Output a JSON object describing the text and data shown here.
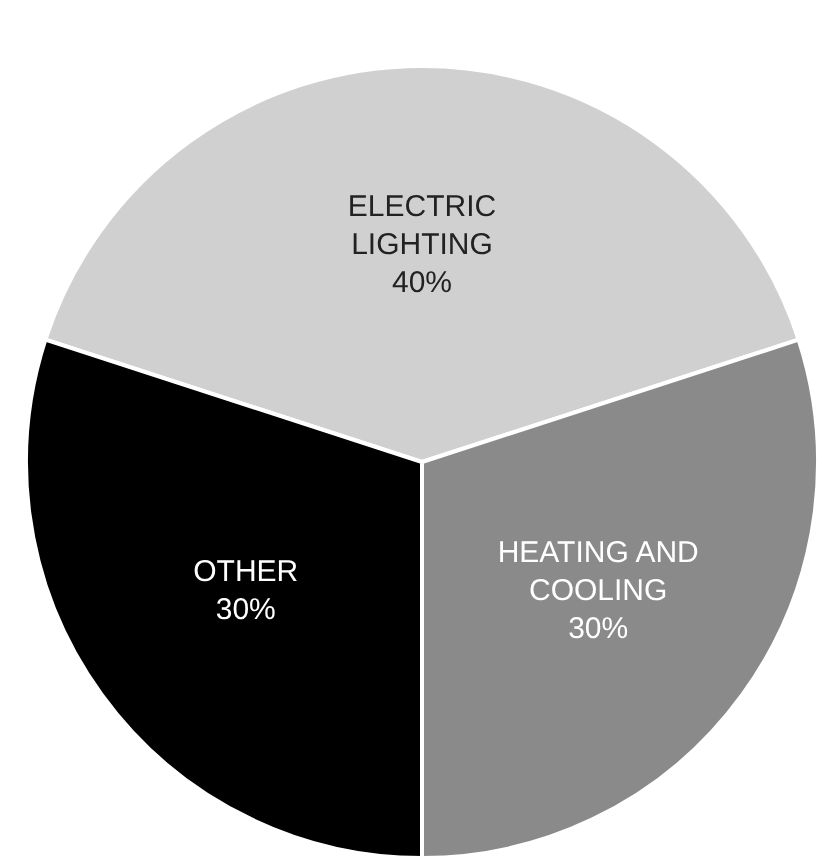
{
  "chart_data": {
    "type": "pie",
    "categories": [
      "ELECTRIC LIGHTING",
      "HEATING AND COOLING",
      "OTHER"
    ],
    "values": [
      40,
      30,
      30
    ],
    "colors": [
      "#d0d0d0",
      "#8a8a8a",
      "#000000"
    ],
    "value_labels": [
      "40%",
      "30%",
      "30%"
    ]
  }
}
